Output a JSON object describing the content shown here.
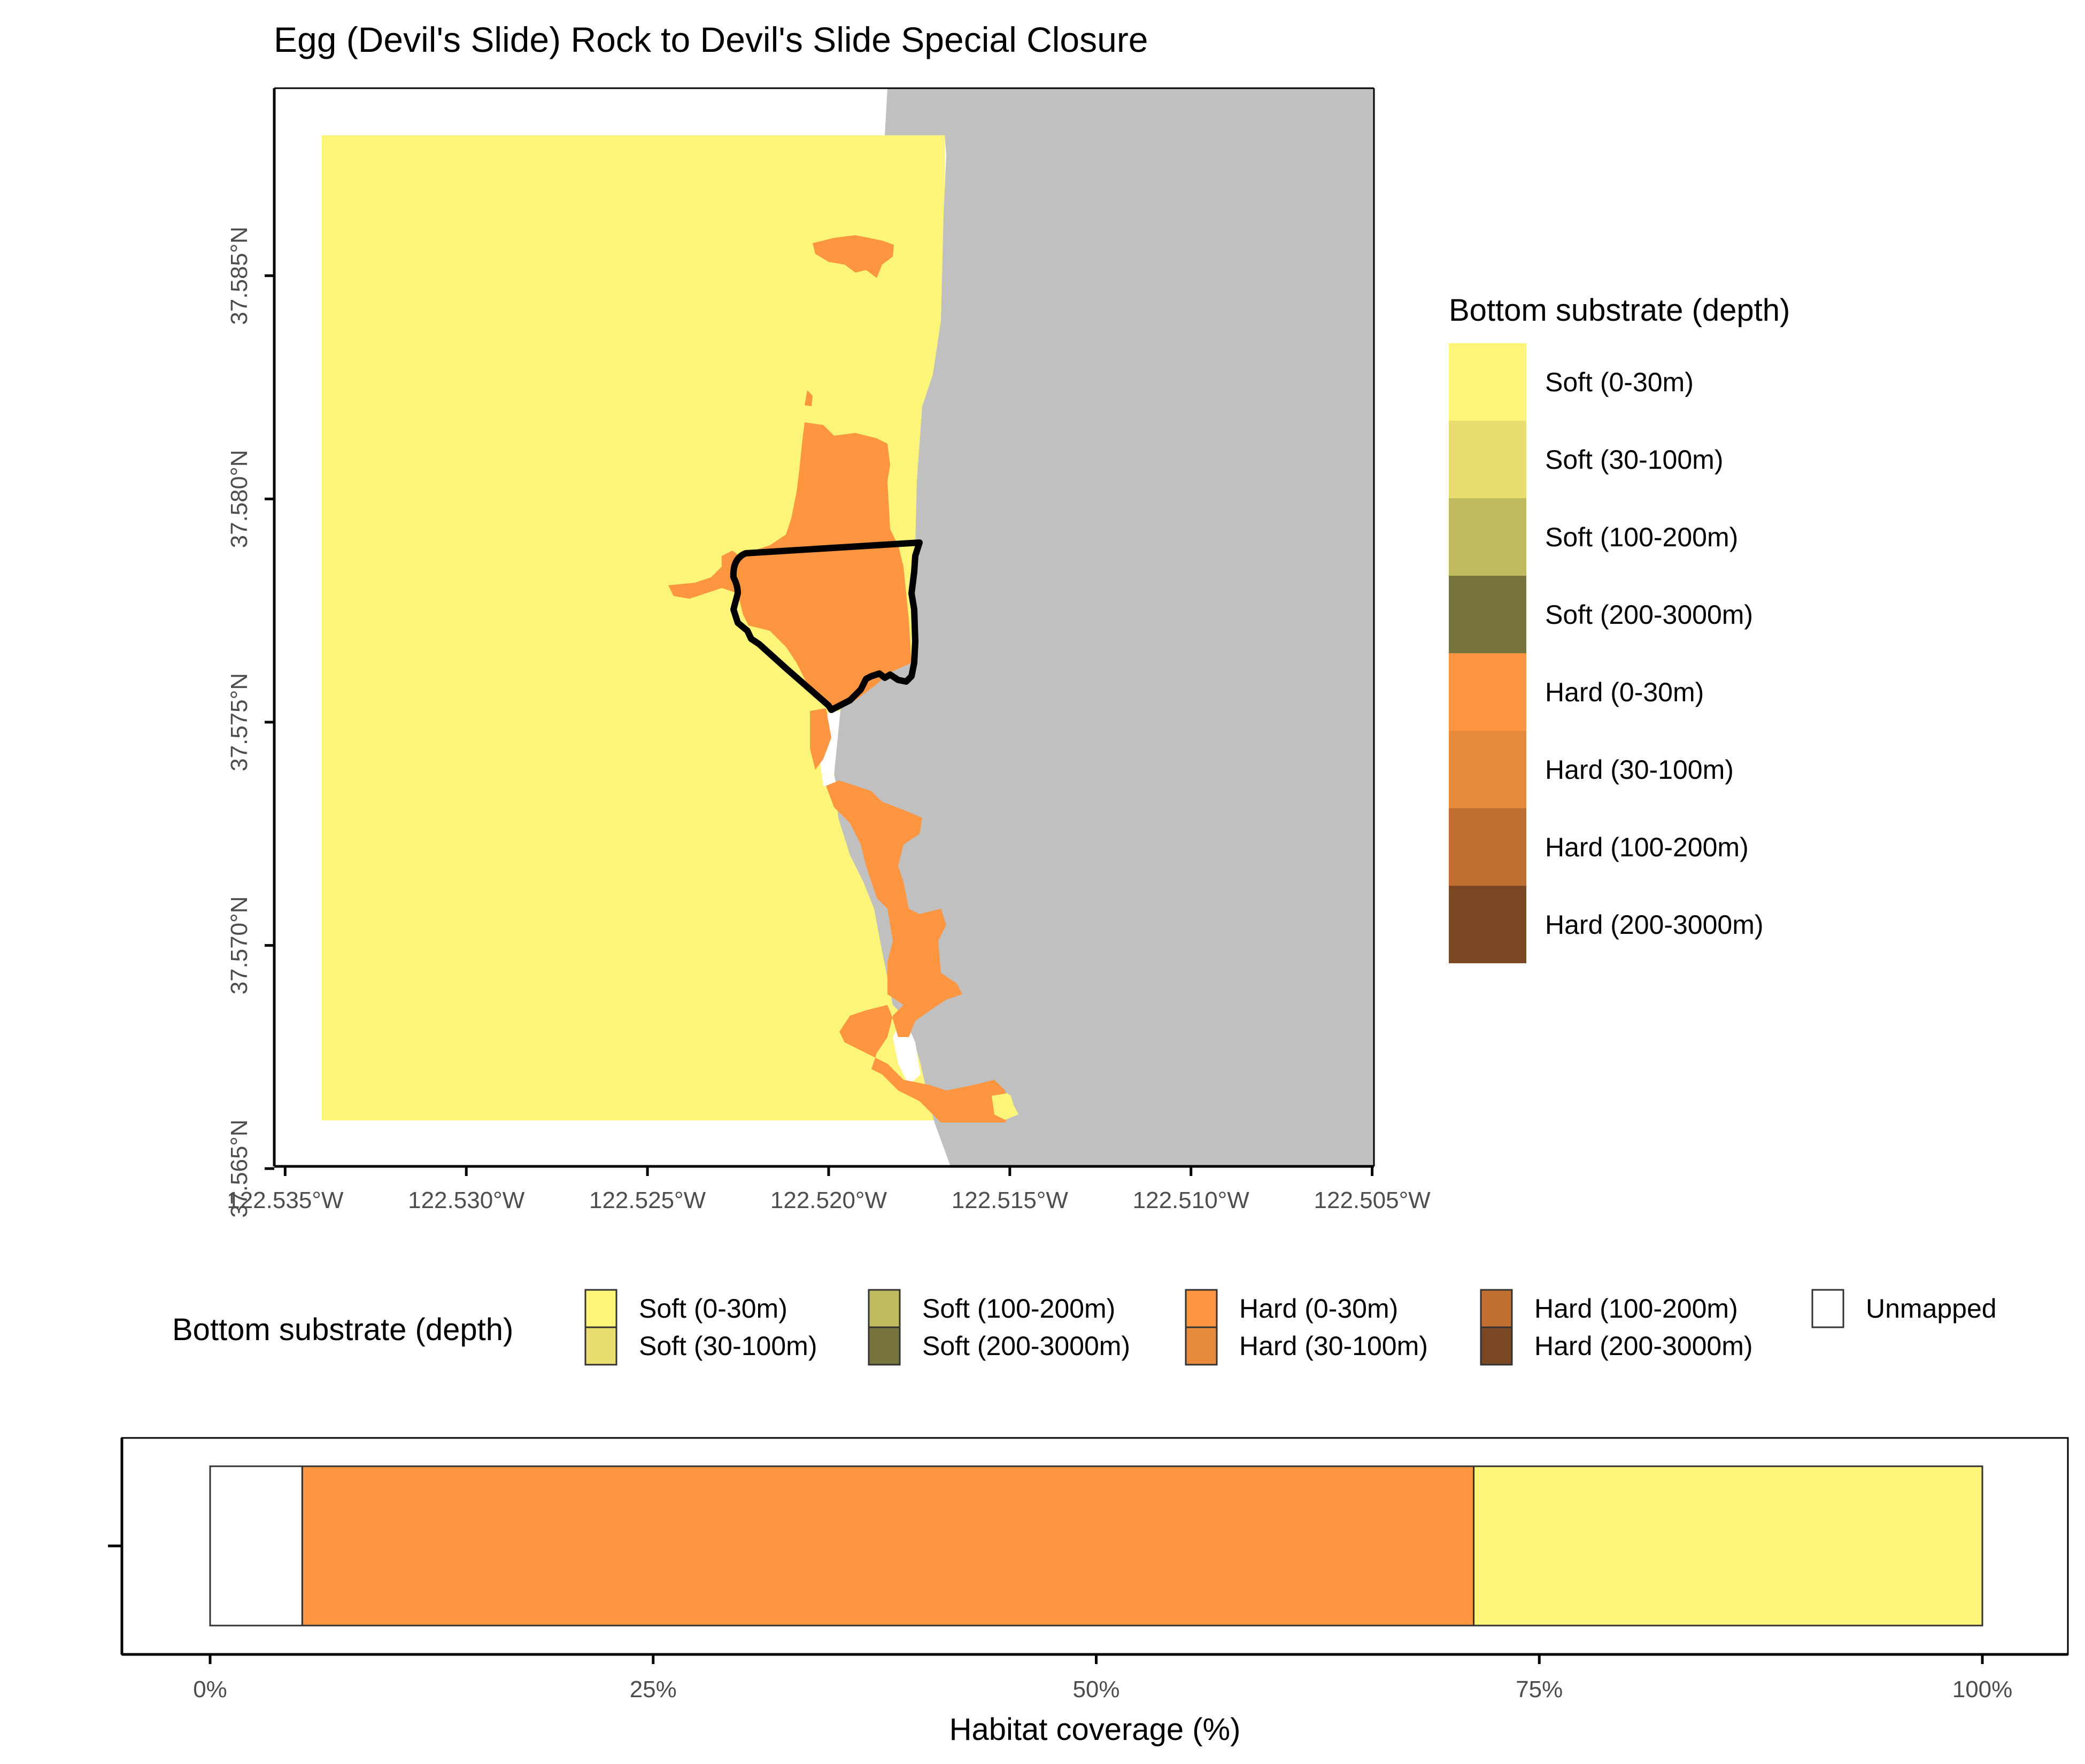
{
  "title": "Egg (Devil's Slide) Rock to Devil's Slide Special Closure",
  "map": {
    "lon_ticks": [
      "122.535°W",
      "122.530°W",
      "122.525°W",
      "122.520°W",
      "122.515°W",
      "122.510°W",
      "122.505°W"
    ],
    "lat_ticks": [
      "37.565°N",
      "37.570°N",
      "37.575°N",
      "37.580°N",
      "37.585°N"
    ],
    "lon_values": [
      -122.535,
      -122.53,
      -122.525,
      -122.52,
      -122.515,
      -122.51,
      -122.505
    ],
    "lat_values": [
      37.565,
      37.57,
      37.575,
      37.58,
      37.585
    ],
    "land_color": "#c0c0c0",
    "boundary_color": "#000000"
  },
  "legend_right": {
    "title": "Bottom substrate (depth)",
    "items": [
      {
        "label": "Soft (0-30m)",
        "color": "#fdf47a"
      },
      {
        "label": "Soft (30-100m)",
        "color": "#e8dd6e"
      },
      {
        "label": "Soft (100-200m)",
        "color": "#c0bb5e"
      },
      {
        "label": "Soft (200-3000m)",
        "color": "#77743e"
      },
      {
        "label": "Hard (0-30m)",
        "color": "#fd9541"
      },
      {
        "label": "Hard (30-100m)",
        "color": "#e88a3c"
      },
      {
        "label": "Hard (100-200m)",
        "color": "#c26f32"
      },
      {
        "label": "Hard (200-3000m)",
        "color": "#7a4823"
      }
    ]
  },
  "legend_bottom": {
    "title": "Bottom substrate (depth)",
    "items": [
      {
        "label": "Soft (0-30m)",
        "color": "#fdf47a"
      },
      {
        "label": "Soft (30-100m)",
        "color": "#e8dd6e"
      },
      {
        "label": "Soft (100-200m)",
        "color": "#c0bb5e"
      },
      {
        "label": "Soft (200-3000m)",
        "color": "#77743e"
      },
      {
        "label": "Hard (0-30m)",
        "color": "#fd9541"
      },
      {
        "label": "Hard (30-100m)",
        "color": "#e88a3c"
      },
      {
        "label": "Hard (100-200m)",
        "color": "#c26f32"
      },
      {
        "label": "Hard (200-3000m)",
        "color": "#7a4823"
      },
      {
        "label": "Unmapped",
        "color": "#ffffff"
      }
    ]
  },
  "chart_data": {
    "type": "bar",
    "orientation": "horizontal-stacked",
    "xlabel": "Habitat coverage (%)",
    "ylabel": "",
    "xlim": [
      0,
      100
    ],
    "x_ticks": [
      "0%",
      "25%",
      "50%",
      "75%",
      "100%"
    ],
    "x_tick_values": [
      0,
      25,
      50,
      75,
      100
    ],
    "series": [
      {
        "name": "Unmapped",
        "value": 5.2,
        "color": "#ffffff"
      },
      {
        "name": "Hard (0-30m)",
        "value": 66.1,
        "color": "#fd9541"
      },
      {
        "name": "Soft (0-30m)",
        "value": 28.7,
        "color": "#fdf47a"
      }
    ]
  }
}
